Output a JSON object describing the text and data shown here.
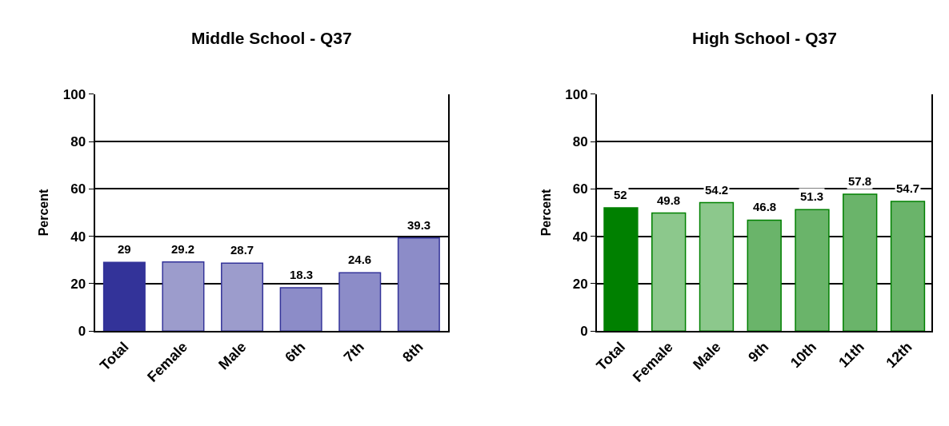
{
  "chart_data": [
    {
      "type": "bar",
      "title": "Middle School - Q37",
      "ylabel": "Percent",
      "categories": [
        "Total",
        "Female",
        "Male",
        "6th",
        "7th",
        "8th"
      ],
      "values": [
        29,
        29.2,
        28.7,
        18.3,
        24.6,
        39.3
      ],
      "colors": [
        "#333399",
        "#9c9ccc",
        "#9c9ccc",
        "#8c8cc8",
        "#8c8cc8",
        "#8c8cc8"
      ],
      "ylim": [
        0,
        100
      ],
      "yticks": [
        0,
        20,
        40,
        60,
        80,
        100
      ],
      "grid": "y",
      "data_labels": true
    },
    {
      "type": "bar",
      "title": "High School - Q37",
      "ylabel": "Percent",
      "categories": [
        "Total",
        "Female",
        "Male",
        "9th",
        "10th",
        "11th",
        "12th"
      ],
      "values": [
        52,
        49.8,
        54.2,
        46.8,
        51.3,
        57.8,
        54.7
      ],
      "colors": [
        "#008000",
        "#8cc88c",
        "#8cc88c",
        "#6ab46a",
        "#6ab46a",
        "#6ab46a",
        "#6ab46a"
      ],
      "ylim": [
        0,
        100
      ],
      "yticks": [
        0,
        20,
        40,
        60,
        80,
        100
      ],
      "grid": "y",
      "data_labels": true
    }
  ]
}
